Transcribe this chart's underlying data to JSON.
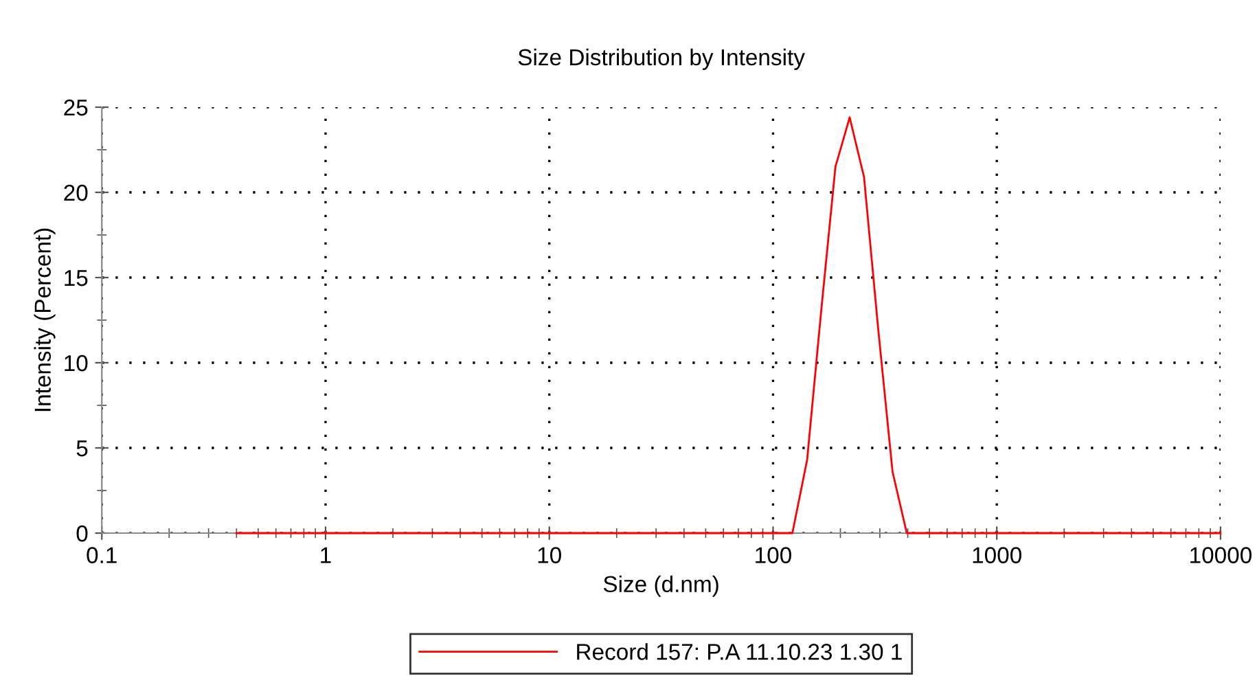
{
  "chart_data": {
    "type": "line",
    "title": "Size Distribution by Intensity",
    "xlabel": "Size (d.nm)",
    "ylabel": "Intensity (Percent)",
    "series": [
      {
        "name": "Record 157: P.A 11.10.23 1.30 1",
        "color": "#ff0000",
        "x": [
          0.4,
          122,
          142,
          164,
          190,
          220,
          255,
          295,
          342,
          396,
          10000
        ],
        "values": [
          0,
          0,
          4.3,
          13,
          21.5,
          24.4,
          20.9,
          12,
          3.6,
          0,
          0
        ]
      }
    ],
    "log": "x",
    "xlim": [
      0.1,
      10000
    ],
    "xticks": [
      0.1,
      1,
      10,
      100,
      1000,
      10000
    ],
    "ylim": [
      0,
      25
    ],
    "yticks": [
      0,
      5,
      10,
      15,
      20,
      25
    ],
    "grid": true,
    "line_style": "solid",
    "marker": "none",
    "legend": "bottom"
  }
}
